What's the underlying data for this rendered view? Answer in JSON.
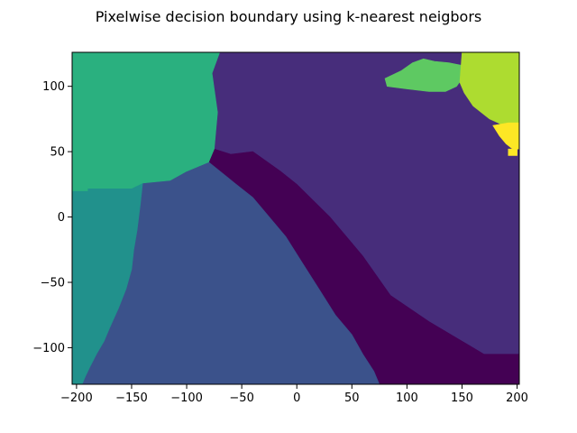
{
  "chart_data": {
    "type": "heatmap",
    "title": "Pixelwise decision boundary using k-nearest neigbors",
    "xlabel": "",
    "ylabel": "",
    "xlim": [
      -204,
      202
    ],
    "ylim": [
      -128,
      126
    ],
    "grid": false,
    "x_ticks": [
      -200,
      -150,
      -100,
      -50,
      0,
      50,
      100,
      150,
      200
    ],
    "x_tick_labels": [
      "−200",
      "−150",
      "−100",
      "−50",
      "0",
      "50",
      "100",
      "150",
      "200"
    ],
    "y_ticks": [
      -100,
      -50,
      0,
      50,
      100
    ],
    "y_tick_labels": [
      "−100",
      "−50",
      "0",
      "50",
      "100"
    ],
    "classes": [
      {
        "id": 0,
        "color": "#440154"
      },
      {
        "id": 1,
        "color": "#472d7b"
      },
      {
        "id": 2,
        "color": "#3b528b"
      },
      {
        "id": 3,
        "color": "#21918c"
      },
      {
        "id": 4,
        "color": "#2ab07f"
      },
      {
        "id": 5,
        "color": "#5ec962"
      },
      {
        "id": 6,
        "color": "#addc30"
      },
      {
        "id": 7,
        "color": "#fde725"
      }
    ],
    "regions": [
      {
        "class": 1,
        "polygon": [
          [
            -70,
            126
          ],
          [
            150,
            126
          ],
          [
            150,
            123
          ],
          [
            175,
            123
          ],
          [
            175,
            126
          ],
          [
            202,
            126
          ],
          [
            202,
            -105
          ],
          [
            170,
            -105
          ],
          [
            120,
            -80
          ],
          [
            85,
            -60
          ],
          [
            60,
            -30
          ],
          [
            30,
            0
          ],
          [
            0,
            25
          ],
          [
            -15,
            35
          ],
          [
            -40,
            50
          ],
          [
            -60,
            48
          ],
          [
            -75,
            52
          ],
          [
            -72,
            80
          ],
          [
            -77,
            110
          ],
          [
            -70,
            126
          ]
        ]
      },
      {
        "class": 0,
        "polygon": [
          [
            -80,
            42
          ],
          [
            -75,
            52
          ],
          [
            -60,
            48
          ],
          [
            -40,
            50
          ],
          [
            -15,
            35
          ],
          [
            0,
            25
          ],
          [
            30,
            0
          ],
          [
            60,
            -30
          ],
          [
            85,
            -60
          ],
          [
            120,
            -80
          ],
          [
            170,
            -105
          ],
          [
            202,
            -105
          ],
          [
            202,
            -128
          ],
          [
            75,
            -128
          ],
          [
            70,
            -118
          ],
          [
            60,
            -105
          ],
          [
            50,
            -90
          ],
          [
            35,
            -75
          ],
          [
            20,
            -55
          ],
          [
            5,
            -35
          ],
          [
            -10,
            -15
          ],
          [
            -25,
            0
          ],
          [
            -40,
            15
          ],
          [
            -55,
            25
          ],
          [
            -80,
            42
          ]
        ]
      },
      {
        "class": 2,
        "polygon": [
          [
            -204,
            -128
          ],
          [
            -204,
            20
          ],
          [
            -190,
            20
          ],
          [
            -190,
            22
          ],
          [
            -150,
            22
          ],
          [
            -140,
            26
          ],
          [
            -115,
            28
          ],
          [
            -100,
            35
          ],
          [
            -80,
            42
          ],
          [
            -55,
            25
          ],
          [
            -40,
            15
          ],
          [
            -25,
            0
          ],
          [
            -10,
            -15
          ],
          [
            5,
            -35
          ],
          [
            20,
            -55
          ],
          [
            35,
            -75
          ],
          [
            50,
            -90
          ],
          [
            60,
            -105
          ],
          [
            70,
            -118
          ],
          [
            75,
            -128
          ],
          [
            -204,
            -128
          ]
        ]
      },
      {
        "class": 3,
        "polygon": [
          [
            -204,
            20
          ],
          [
            -204,
            -128
          ],
          [
            -195,
            -128
          ],
          [
            -192,
            -122
          ],
          [
            -188,
            -115
          ],
          [
            -182,
            -105
          ],
          [
            -175,
            -95
          ],
          [
            -170,
            -85
          ],
          [
            -162,
            -70
          ],
          [
            -155,
            -55
          ],
          [
            -150,
            -40
          ],
          [
            -148,
            -25
          ],
          [
            -145,
            -10
          ],
          [
            -142,
            10
          ],
          [
            -140,
            26
          ],
          [
            -150,
            22
          ],
          [
            -190,
            22
          ],
          [
            -190,
            20
          ],
          [
            -204,
            20
          ]
        ]
      },
      {
        "class": 4,
        "polygon": [
          [
            -204,
            126
          ],
          [
            -70,
            126
          ],
          [
            -77,
            110
          ],
          [
            -72,
            80
          ],
          [
            -75,
            52
          ],
          [
            -80,
            42
          ],
          [
            -100,
            35
          ],
          [
            -115,
            28
          ],
          [
            -140,
            26
          ],
          [
            -150,
            22
          ],
          [
            -190,
            22
          ],
          [
            -190,
            20
          ],
          [
            -204,
            20
          ],
          [
            -204,
            126
          ]
        ]
      },
      {
        "class": 5,
        "polygon": [
          [
            80,
            106
          ],
          [
            95,
            112
          ],
          [
            105,
            118
          ],
          [
            115,
            121
          ],
          [
            125,
            119
          ],
          [
            138,
            118
          ],
          [
            150,
            116
          ],
          [
            152,
            108
          ],
          [
            145,
            100
          ],
          [
            135,
            96
          ],
          [
            120,
            96
          ],
          [
            100,
            98
          ],
          [
            82,
            100
          ],
          [
            80,
            106
          ]
        ]
      },
      {
        "class": 6,
        "polygon": [
          [
            150,
            126
          ],
          [
            202,
            126
          ],
          [
            202,
            72
          ],
          [
            188,
            70
          ],
          [
            175,
            75
          ],
          [
            160,
            85
          ],
          [
            152,
            95
          ],
          [
            148,
            103
          ],
          [
            150,
            126
          ]
        ]
      },
      {
        "class": 7,
        "polygon": [
          [
            178,
            70
          ],
          [
            184,
            62
          ],
          [
            190,
            56
          ],
          [
            196,
            52
          ],
          [
            202,
            52
          ],
          [
            202,
            72
          ],
          [
            192,
            72
          ],
          [
            178,
            70
          ]
        ]
      },
      {
        "class": 7,
        "polygon": [
          [
            192,
            52
          ],
          [
            200,
            52
          ],
          [
            200,
            47
          ],
          [
            192,
            47
          ],
          [
            192,
            52
          ]
        ]
      }
    ]
  }
}
